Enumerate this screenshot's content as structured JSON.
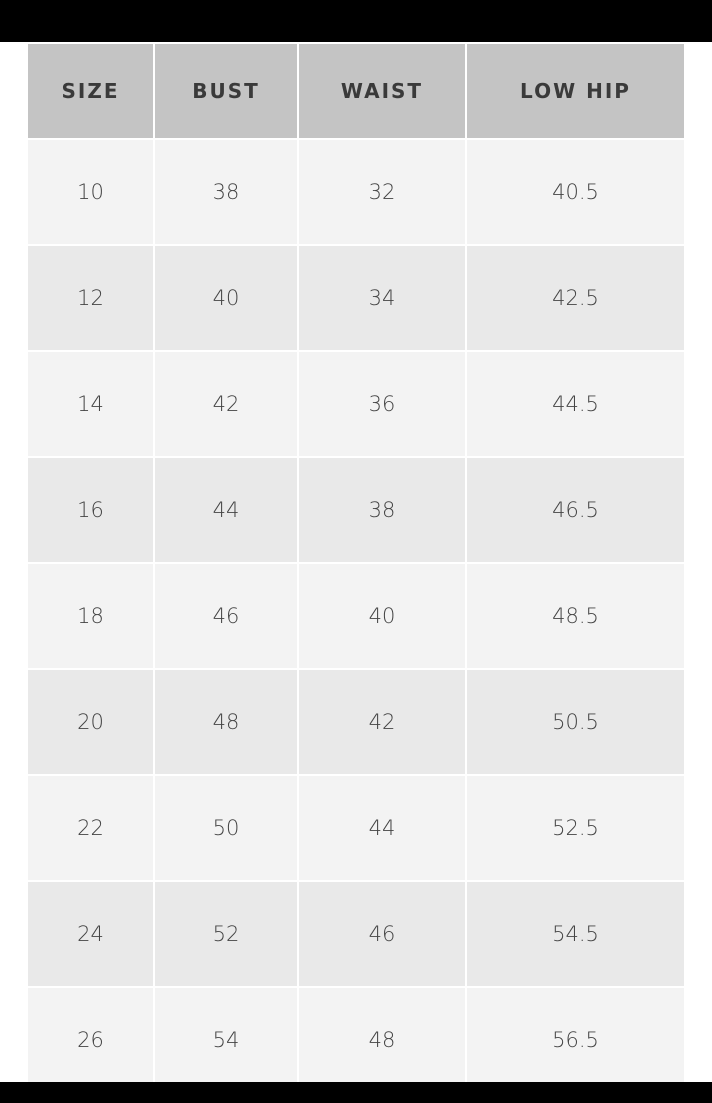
{
  "table": {
    "headers": [
      "SIZE",
      "BUST",
      "WAIST",
      "LOW HIP"
    ],
    "rows": [
      [
        "10",
        "38",
        "32",
        "40.5"
      ],
      [
        "12",
        "40",
        "34",
        "42.5"
      ],
      [
        "14",
        "42",
        "36",
        "44.5"
      ],
      [
        "16",
        "44",
        "38",
        "46.5"
      ],
      [
        "18",
        "46",
        "40",
        "48.5"
      ],
      [
        "20",
        "48",
        "42",
        "50.5"
      ],
      [
        "22",
        "50",
        "44",
        "52.5"
      ],
      [
        "24",
        "52",
        "46",
        "54.5"
      ],
      [
        "26",
        "54",
        "48",
        "56.5"
      ]
    ]
  },
  "colors": {
    "header_bg": "#c4c4c4",
    "row_odd": "#f3f3f3",
    "row_even": "#e9e9e9"
  }
}
